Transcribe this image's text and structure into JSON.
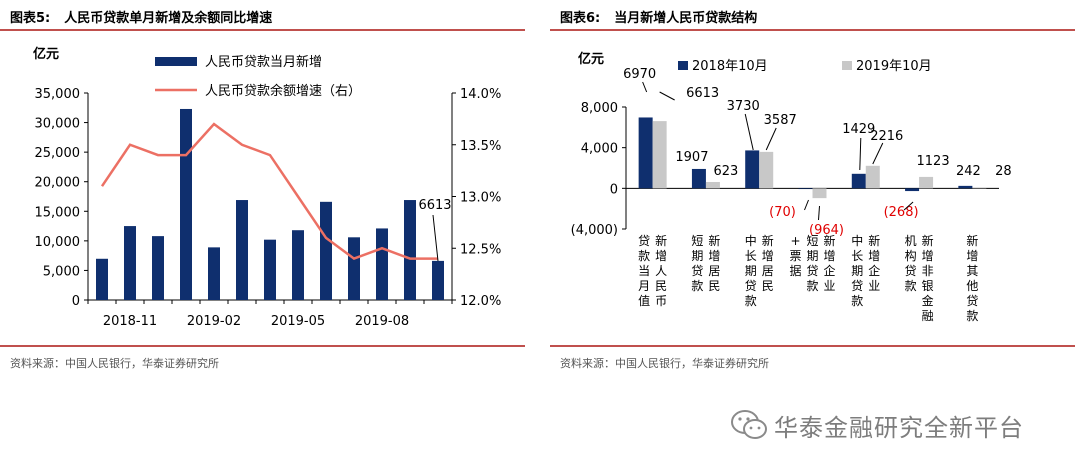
{
  "left": {
    "title_num": "图表5:",
    "title_text": "人民币贷款单月新增及余额同比增速",
    "unit": "亿元",
    "legend": [
      "人民币贷款当月新增",
      "人民币贷款余额增速（右）"
    ],
    "source": "资料来源：中国人民银行，华泰证券研究所",
    "annotation": "6613"
  },
  "right": {
    "title_num": "图表6:",
    "title_text": "当月新增人民币贷款结构",
    "unit": "亿元",
    "legend": [
      "2018年10月",
      "2019年10月"
    ],
    "source": "资料来源：中国人民银行，华泰证券研究所",
    "categories": [
      "新增人民币贷款当月值",
      "新增居民短期贷款",
      "新增居民中长期贷款",
      "新增企业短期贷款+票据",
      "新增企业中长期贷款",
      "新增非银金融机构贷款",
      "新增其他贷款"
    ],
    "category_label_columns": [
      [
        "贷款当月值",
        "新增人民币"
      ],
      [
        "短期贷款",
        "新增居民"
      ],
      [
        "中长期贷款",
        "新增居民"
      ],
      [
        "+票据",
        "短期贷款",
        "新增企业"
      ],
      [
        "中长期贷款",
        "新增企业"
      ],
      [
        "机构贷款",
        "新增非银金融"
      ],
      [
        "新增其他贷款"
      ]
    ],
    "labels_2018": [
      "6970",
      "1907",
      "3730",
      "(70)",
      "1429",
      "(268)",
      "242"
    ],
    "labels_2019": [
      "6613",
      "623",
      "3587",
      "(964)",
      "2216",
      "1123",
      "28"
    ]
  },
  "watermark": "华泰金融研究全新平台",
  "colors": {
    "navy": "#0f2f6e",
    "salmon": "#ec7064",
    "gray": "#c8c8c8",
    "red": "#e00000",
    "accent": "#c0504d"
  },
  "chart_data": [
    {
      "type": "bar+line",
      "title": "人民币贷款单月新增及余额同比增速",
      "x": [
        "2018-10",
        "2018-11",
        "2018-12",
        "2019-01",
        "2019-02",
        "2019-03",
        "2019-04",
        "2019-05",
        "2019-06",
        "2019-07",
        "2019-08",
        "2019-09",
        "2019-10"
      ],
      "x_tick_labels": [
        "2018-11",
        "2019-02",
        "2019-05",
        "2019-08"
      ],
      "series": [
        {
          "name": "人民币贷款当月新增",
          "type": "bar",
          "axis": "left",
          "values": [
            6970,
            12500,
            10800,
            32300,
            8900,
            16900,
            10200,
            11800,
            16600,
            10600,
            12100,
            16900,
            6613
          ]
        },
        {
          "name": "人民币贷款余额增速（右）",
          "type": "line",
          "axis": "right",
          "values": [
            13.1,
            13.5,
            13.4,
            13.4,
            13.7,
            13.5,
            13.4,
            13.0,
            12.6,
            12.4,
            12.5,
            12.4,
            12.4
          ]
        }
      ],
      "ylim_left": [
        0,
        35000
      ],
      "yticks_left": [
        "0",
        "5,000",
        "10,000",
        "15,000",
        "20,000",
        "25,000",
        "30,000",
        "35,000"
      ],
      "ylim_right": [
        12.0,
        14.0
      ],
      "yticks_right": [
        "12.0%",
        "12.5%",
        "13.0%",
        "13.5%",
        "14.0%"
      ],
      "ylabel": "亿元",
      "legend": "top"
    },
    {
      "type": "bar",
      "title": "当月新增人民币贷款结构",
      "categories": [
        "新增人民币贷款当月值",
        "新增居民短期贷款",
        "新增居民中长期贷款",
        "新增企业短期贷款+票据",
        "新增企业中长期贷款",
        "新增非银金融机构贷款",
        "新增其他贷款"
      ],
      "series": [
        {
          "name": "2018年10月",
          "values": [
            6970,
            1907,
            3730,
            -70,
            1429,
            -268,
            242
          ]
        },
        {
          "name": "2019年10月",
          "values": [
            6613,
            623,
            3587,
            -964,
            2216,
            1123,
            28
          ]
        }
      ],
      "ylim": [
        -4000,
        8000
      ],
      "yticks": [
        "(4,000)",
        "0",
        "4,000",
        "8,000"
      ],
      "ylabel": "亿元",
      "legend": "top"
    }
  ]
}
